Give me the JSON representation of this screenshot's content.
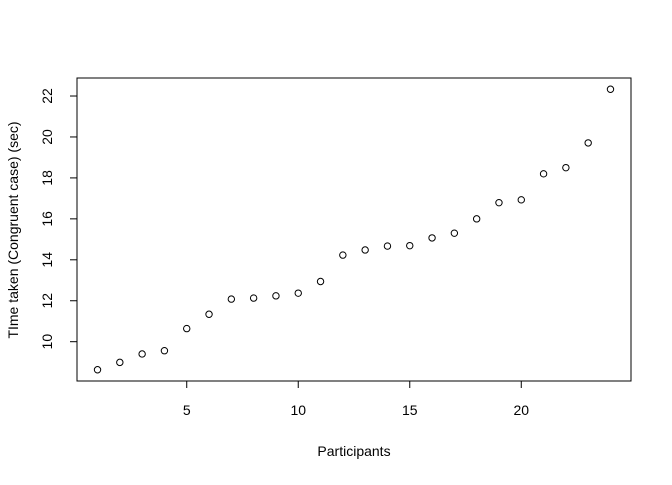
{
  "chart_data": {
    "type": "scatter",
    "title": "",
    "xlabel": "Participants",
    "ylabel": "TIme taken (Congruent case) (sec)",
    "x": [
      1,
      2,
      3,
      4,
      5,
      6,
      7,
      8,
      9,
      10,
      11,
      12,
      13,
      14,
      15,
      16,
      17,
      18,
      19,
      20,
      21,
      22,
      23,
      24
    ],
    "y": [
      8.63,
      8.99,
      9.4,
      9.56,
      10.64,
      11.34,
      12.08,
      12.13,
      12.24,
      12.37,
      12.94,
      14.23,
      14.48,
      14.67,
      14.69,
      15.07,
      15.3,
      16.0,
      16.79,
      16.93,
      18.2,
      18.5,
      19.71,
      22.33
    ],
    "xlim": [
      0.08,
      24.92
    ],
    "ylim": [
      8.08,
      22.88
    ],
    "x_ticks": [
      5,
      10,
      15,
      20
    ],
    "x_tick_labels": [
      "5",
      "10",
      "15",
      "20"
    ],
    "y_ticks": [
      10,
      12,
      14,
      16,
      18,
      20,
      22
    ],
    "y_tick_labels": [
      "10",
      "12",
      "14",
      "16",
      "18",
      "20",
      "22"
    ],
    "grid": false,
    "marker": "open-circle",
    "marker_color": "#000000"
  }
}
